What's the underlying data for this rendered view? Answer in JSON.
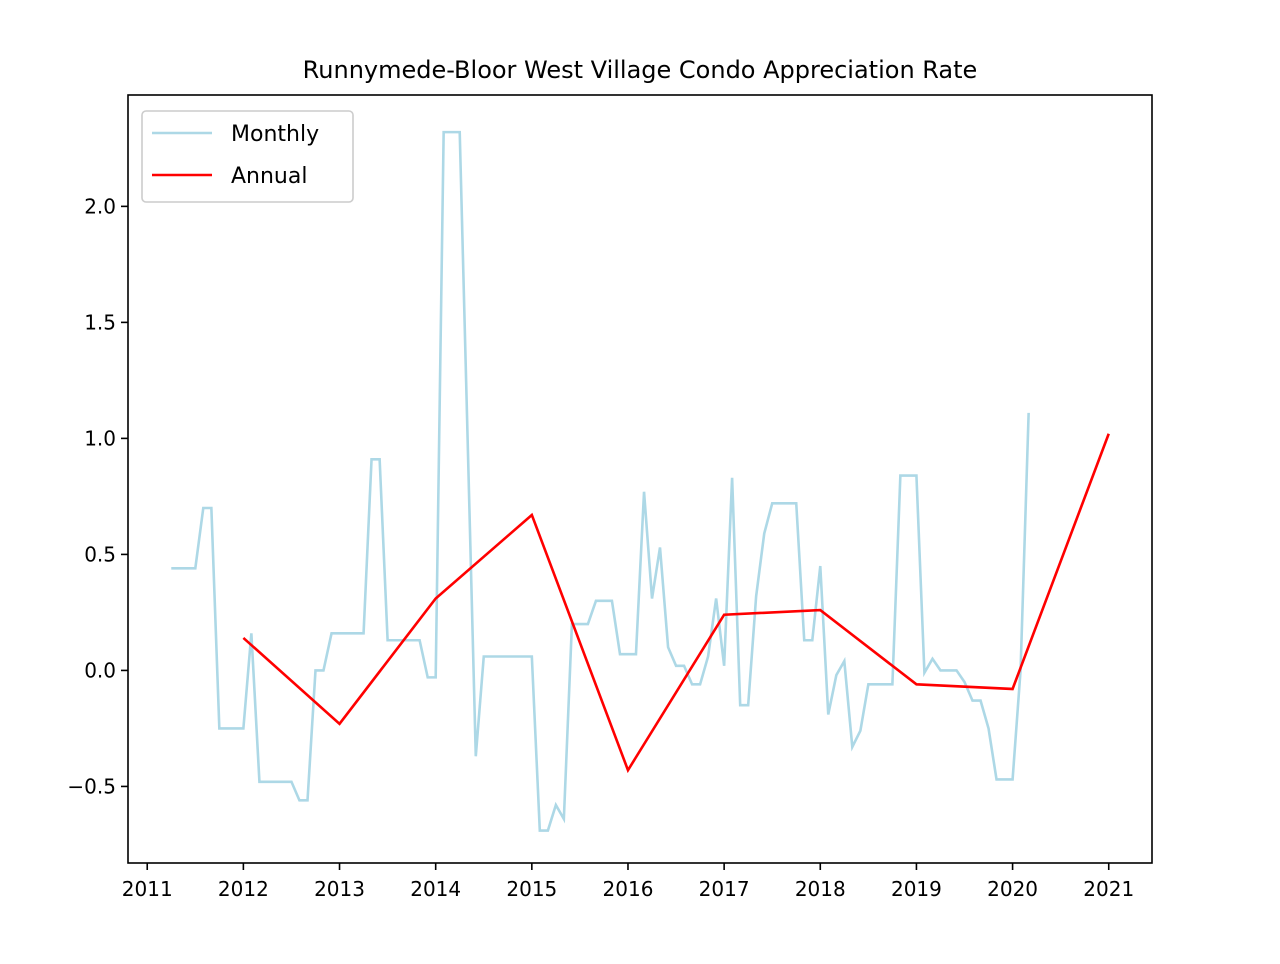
{
  "chart_data": {
    "type": "line",
    "title": "Runnymede-Bloor West Village Condo Appreciation Rate",
    "xlabel": "",
    "ylabel": "",
    "xlim": [
      2010.8,
      2021.45
    ],
    "ylim": [
      -0.83,
      2.48
    ],
    "x_ticks": [
      2011,
      2012,
      2013,
      2014,
      2015,
      2016,
      2017,
      2018,
      2019,
      2020,
      2021
    ],
    "x_tick_labels": [
      "2011",
      "2012",
      "2013",
      "2014",
      "2015",
      "2016",
      "2017",
      "2018",
      "2019",
      "2020",
      "2021"
    ],
    "y_ticks": [
      -0.5,
      0.0,
      0.5,
      1.0,
      1.5,
      2.0
    ],
    "y_tick_labels": [
      "−0.5",
      "0.0",
      "0.5",
      "1.0",
      "1.5",
      "2.0"
    ],
    "grid": false,
    "legend_position": "upper-left",
    "series": [
      {
        "name": "Monthly",
        "color": "#add8e6",
        "points": [
          [
            2011.25,
            0.44
          ],
          [
            2011.333,
            0.44
          ],
          [
            2011.417,
            0.44
          ],
          [
            2011.5,
            0.44
          ],
          [
            2011.583,
            0.7
          ],
          [
            2011.667,
            0.7
          ],
          [
            2011.75,
            -0.25
          ],
          [
            2011.833,
            -0.25
          ],
          [
            2011.917,
            -0.25
          ],
          [
            2012.0,
            -0.25
          ],
          [
            2012.083,
            0.16
          ],
          [
            2012.167,
            -0.48
          ],
          [
            2012.25,
            -0.48
          ],
          [
            2012.333,
            -0.48
          ],
          [
            2012.417,
            -0.48
          ],
          [
            2012.5,
            -0.48
          ],
          [
            2012.583,
            -0.56
          ],
          [
            2012.667,
            -0.56
          ],
          [
            2012.75,
            0.0
          ],
          [
            2012.833,
            0.0
          ],
          [
            2012.917,
            0.16
          ],
          [
            2013.0,
            0.16
          ],
          [
            2013.083,
            0.16
          ],
          [
            2013.167,
            0.16
          ],
          [
            2013.25,
            0.16
          ],
          [
            2013.333,
            0.91
          ],
          [
            2013.417,
            0.91
          ],
          [
            2013.5,
            0.13
          ],
          [
            2013.583,
            0.13
          ],
          [
            2013.667,
            0.13
          ],
          [
            2013.75,
            0.13
          ],
          [
            2013.833,
            0.13
          ],
          [
            2013.917,
            -0.03
          ],
          [
            2014.0,
            -0.03
          ],
          [
            2014.083,
            2.32
          ],
          [
            2014.167,
            2.32
          ],
          [
            2014.25,
            2.32
          ],
          [
            2014.417,
            -0.37
          ],
          [
            2014.5,
            0.06
          ],
          [
            2014.583,
            0.06
          ],
          [
            2014.667,
            0.06
          ],
          [
            2014.75,
            0.06
          ],
          [
            2014.833,
            0.06
          ],
          [
            2014.917,
            0.06
          ],
          [
            2015.0,
            0.06
          ],
          [
            2015.083,
            -0.69
          ],
          [
            2015.167,
            -0.69
          ],
          [
            2015.25,
            -0.58
          ],
          [
            2015.333,
            -0.64
          ],
          [
            2015.417,
            0.2
          ],
          [
            2015.5,
            0.2
          ],
          [
            2015.583,
            0.2
          ],
          [
            2015.667,
            0.3
          ],
          [
            2015.75,
            0.3
          ],
          [
            2015.833,
            0.3
          ],
          [
            2015.917,
            0.07
          ],
          [
            2016.0,
            0.07
          ],
          [
            2016.083,
            0.07
          ],
          [
            2016.167,
            0.77
          ],
          [
            2016.25,
            0.31
          ],
          [
            2016.333,
            0.53
          ],
          [
            2016.417,
            0.1
          ],
          [
            2016.5,
            0.02
          ],
          [
            2016.583,
            0.02
          ],
          [
            2016.667,
            -0.06
          ],
          [
            2016.75,
            -0.06
          ],
          [
            2016.833,
            0.06
          ],
          [
            2016.917,
            0.31
          ],
          [
            2017.0,
            0.02
          ],
          [
            2017.083,
            0.83
          ],
          [
            2017.167,
            -0.15
          ],
          [
            2017.25,
            -0.15
          ],
          [
            2017.333,
            0.32
          ],
          [
            2017.417,
            0.59
          ],
          [
            2017.5,
            0.72
          ],
          [
            2017.583,
            0.72
          ],
          [
            2017.667,
            0.72
          ],
          [
            2017.75,
            0.72
          ],
          [
            2017.833,
            0.13
          ],
          [
            2017.917,
            0.13
          ],
          [
            2018.0,
            0.45
          ],
          [
            2018.083,
            -0.19
          ],
          [
            2018.167,
            -0.02
          ],
          [
            2018.25,
            0.04
          ],
          [
            2018.333,
            -0.33
          ],
          [
            2018.417,
            -0.26
          ],
          [
            2018.5,
            -0.06
          ],
          [
            2018.583,
            -0.06
          ],
          [
            2018.667,
            -0.06
          ],
          [
            2018.75,
            -0.06
          ],
          [
            2018.833,
            0.84
          ],
          [
            2018.917,
            0.84
          ],
          [
            2019.0,
            0.84
          ],
          [
            2019.083,
            -0.01
          ],
          [
            2019.167,
            0.05
          ],
          [
            2019.25,
            0.0
          ],
          [
            2019.333,
            0.0
          ],
          [
            2019.417,
            0.0
          ],
          [
            2019.5,
            -0.05
          ],
          [
            2019.583,
            -0.13
          ],
          [
            2019.667,
            -0.13
          ],
          [
            2019.75,
            -0.25
          ],
          [
            2019.833,
            -0.47
          ],
          [
            2019.917,
            -0.47
          ],
          [
            2020.0,
            -0.47
          ],
          [
            2020.083,
            0.0
          ],
          [
            2020.167,
            1.11
          ]
        ]
      },
      {
        "name": "Annual",
        "color": "#ff0000",
        "points": [
          [
            2012.0,
            0.14
          ],
          [
            2013.0,
            -0.23
          ],
          [
            2014.0,
            0.31
          ],
          [
            2015.0,
            0.67
          ],
          [
            2016.0,
            -0.43
          ],
          [
            2017.0,
            0.24
          ],
          [
            2018.0,
            0.26
          ],
          [
            2019.0,
            -0.06
          ],
          [
            2020.0,
            -0.08
          ],
          [
            2021.0,
            1.02
          ]
        ]
      }
    ]
  }
}
